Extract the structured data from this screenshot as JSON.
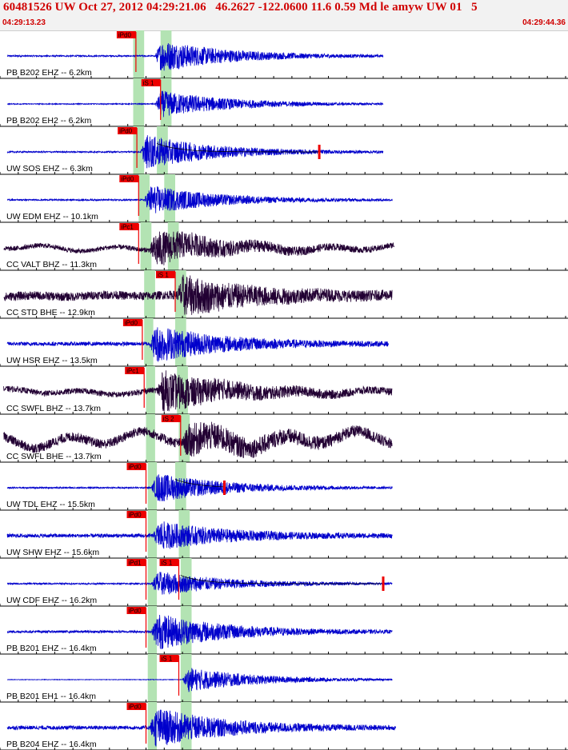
{
  "header": {
    "title": "60481526 UW Oct 27, 2012 04:29:21.06   46.2627 -122.0600 11.6 0.59 Md le amyw UW 01   5",
    "start_time": "04:29:13.23",
    "end_time": "04:29:44.36"
  },
  "colors": {
    "header_text": "#d00000",
    "trace_blue": "#0000cc",
    "trace_dark": "#220033",
    "pick_red": "#ee0000",
    "window_green": "#b3e3b3",
    "coda_red": "#cc0000"
  },
  "chart_data": {
    "type": "line",
    "x_range_seconds": [
      0,
      31.13
    ],
    "x_tick_interval_seconds": 1,
    "series": [
      {
        "label": "PB B202 EHZ -- 6.2km",
        "pick": "iPd0",
        "pick_t": 7.45,
        "p_window": [
          7.3,
          7.9
        ],
        "s_window": [
          8.8,
          9.4
        ],
        "onset": 8.5,
        "end_t": 21.0,
        "amp": 0.7,
        "noise": 0.03,
        "dark": false,
        "low": 0.0
      },
      {
        "label": "PB B202 EH2 -- 6.2km",
        "pick": "iS 1",
        "pick_t": 8.8,
        "p_window": [
          7.3,
          7.9
        ],
        "s_window": [
          8.8,
          9.4
        ],
        "onset": 8.5,
        "end_t": 21.0,
        "amp": 0.6,
        "noise": 0.02,
        "dark": false,
        "low": 0.0
      },
      {
        "label": "UW SOS EHZ -- 6.3km",
        "pick": "iPd0",
        "pick_t": 7.5,
        "p_window": [
          7.3,
          7.9
        ],
        "s_window": [
          8.6,
          9.2
        ],
        "onset": 7.7,
        "end_t": 21.0,
        "amp": 0.75,
        "noise": 0.03,
        "dark": false,
        "low": 0.0,
        "coda_to": 17.5
      },
      {
        "label": "UW EDM EHZ -- 10.1km",
        "pick": "iPd0",
        "pick_t": 7.6,
        "p_window": [
          7.6,
          8.2
        ],
        "s_window": [
          9.0,
          9.6
        ],
        "onset": 7.9,
        "end_t": 21.5,
        "amp": 0.65,
        "noise": 0.03,
        "dark": false,
        "low": 0.0
      },
      {
        "label": "CC VALT BHZ -- 11.3km",
        "pick": "iPc1",
        "pick_t": 7.6,
        "p_window": [
          7.7,
          8.3
        ],
        "s_window": [
          9.2,
          9.8
        ],
        "onset": 8.2,
        "end_t": 21.6,
        "amp": 0.75,
        "noise": 0.1,
        "dark": true,
        "low": 0.15
      },
      {
        "label": "CC STD BHE -- 12.9km",
        "pick": "iS 1",
        "pick_t": 9.6,
        "p_window": [
          7.9,
          8.5
        ],
        "s_window": [
          9.6,
          10.2
        ],
        "onset": 9.7,
        "end_t": 21.5,
        "amp": 0.8,
        "noise": 0.18,
        "dark": true,
        "low": 0.05
      },
      {
        "label": "UW HSR EHZ -- 13.5km",
        "pick": "iPd0",
        "pick_t": 7.8,
        "p_window": [
          7.9,
          8.4
        ],
        "s_window": [
          9.6,
          10.2
        ],
        "onset": 8.2,
        "end_t": 21.3,
        "amp": 0.8,
        "noise": 0.08,
        "dark": false,
        "low": 0.0
      },
      {
        "label": "CC SWFL BHZ -- 13.7km",
        "pick": "iPc1",
        "pick_t": 7.9,
        "p_window": [
          8.0,
          8.5
        ],
        "s_window": [
          9.7,
          10.3
        ],
        "onset": 8.6,
        "end_t": 21.5,
        "amp": 0.85,
        "noise": 0.12,
        "dark": true,
        "low": 0.12
      },
      {
        "label": "CC SWFL BHE -- 13.7km",
        "pick": "iS 2",
        "pick_t": 9.9,
        "p_window": [
          8.0,
          8.5
        ],
        "s_window": [
          9.8,
          10.4
        ],
        "onset": 10.0,
        "end_t": 21.5,
        "amp": 0.6,
        "noise": 0.2,
        "dark": true,
        "low": 0.35
      },
      {
        "label": "UW TDL EHZ -- 15.5km",
        "pick": "iPd0",
        "pick_t": 8.0,
        "p_window": [
          8.1,
          8.6
        ],
        "s_window": [
          9.6,
          10.2
        ],
        "onset": 8.3,
        "end_t": 21.5,
        "amp": 0.65,
        "noise": 0.03,
        "dark": false,
        "low": 0.0,
        "coda_to": 12.3
      },
      {
        "label": "UW SHW EHZ -- 15.6km",
        "pick": "iPd0",
        "pick_t": 8.0,
        "p_window": [
          8.1,
          8.6
        ],
        "s_window": [
          9.8,
          10.4
        ],
        "onset": 8.4,
        "end_t": 21.5,
        "amp": 0.6,
        "noise": 0.08,
        "dark": false,
        "low": 0.0
      },
      {
        "label": "UW CDF EHZ -- 16.2km",
        "pick": "iPd1",
        "pick_t": 8.0,
        "pick2": "iS 1",
        "pick2_t": 9.8,
        "p_window": [
          8.1,
          8.6
        ],
        "s_window": [
          9.9,
          10.5
        ],
        "onset": 8.3,
        "end_t": 21.5,
        "amp": 0.55,
        "noise": 0.03,
        "dark": false,
        "low": 0.0,
        "coda_to": 21.0
      },
      {
        "label": "PB B201 EHZ -- 16.4km",
        "pick": "iPd0",
        "pick_t": 8.0,
        "p_window": [
          8.1,
          8.6
        ],
        "s_window": [
          9.9,
          10.5
        ],
        "onset": 8.3,
        "end_t": 21.5,
        "amp": 0.8,
        "noise": 0.05,
        "dark": false,
        "low": 0.0
      },
      {
        "label": "PB B201 EH1 -- 16.4km",
        "pick": "iS 1",
        "pick_t": 9.8,
        "p_window": [
          8.1,
          8.6
        ],
        "s_window": [
          9.9,
          10.5
        ],
        "onset": 10.0,
        "end_t": 21.5,
        "amp": 0.55,
        "noise": 0.01,
        "dark": false,
        "low": 0.0
      },
      {
        "label": "PB B204 EHZ -- 16.4km",
        "pick": "iPd0",
        "pick_t": 8.0,
        "p_window": [
          8.1,
          8.6
        ],
        "s_window": [
          9.9,
          10.5
        ],
        "onset": 8.2,
        "end_t": 21.7,
        "amp": 0.85,
        "noise": 0.08,
        "dark": false,
        "low": 0.0
      }
    ]
  }
}
